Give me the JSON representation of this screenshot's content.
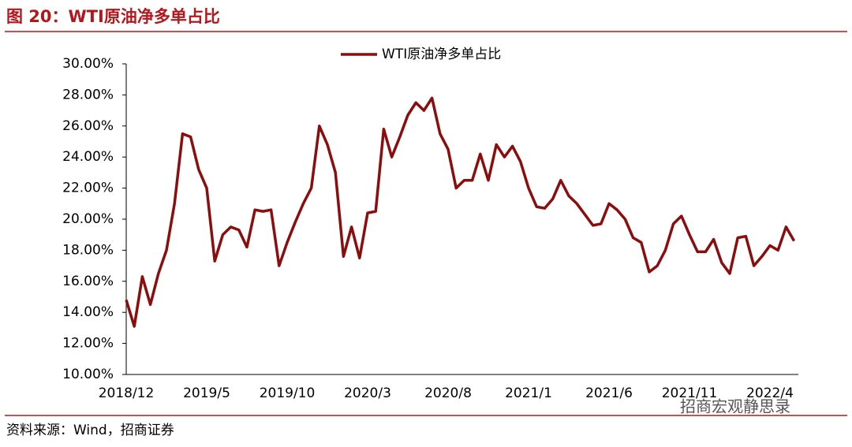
{
  "chart_data": {
    "type": "line",
    "title": "图 20：WTI原油净多单占比",
    "source": "资料来源：Wind，招商证券",
    "watermark": "招商宏观静思录",
    "legend_position": "top",
    "categories": [
      "2018/12",
      null,
      null,
      null,
      null,
      null,
      null,
      null,
      null,
      null,
      "2019/5",
      null,
      null,
      null,
      null,
      null,
      null,
      null,
      null,
      null,
      "2019/10",
      null,
      null,
      null,
      null,
      null,
      null,
      null,
      null,
      null,
      "2020/3",
      null,
      null,
      null,
      null,
      null,
      null,
      null,
      null,
      null,
      "2020/8",
      null,
      null,
      null,
      null,
      null,
      null,
      null,
      null,
      null,
      "2021/1",
      null,
      null,
      null,
      null,
      null,
      null,
      null,
      null,
      null,
      "2021/6",
      null,
      null,
      null,
      null,
      null,
      null,
      null,
      null,
      null,
      "2021/11",
      null,
      null,
      null,
      null,
      null,
      null,
      null,
      null,
      null,
      "2022/4",
      null,
      null,
      null
    ],
    "series": [
      {
        "name": "WTI原油净多单占比",
        "color": "#8b0d0d",
        "values": [
          14.8,
          13.1,
          16.3,
          14.5,
          16.5,
          18.0,
          21.0,
          25.5,
          25.3,
          23.2,
          22.0,
          17.3,
          19.0,
          19.5,
          19.3,
          18.2,
          20.6,
          20.5,
          20.6,
          17.0,
          18.5,
          19.8,
          21.0,
          22.0,
          26.0,
          24.8,
          23.0,
          17.6,
          19.5,
          17.5,
          20.4,
          20.5,
          25.8,
          24.0,
          25.3,
          26.7,
          27.5,
          27.0,
          27.8,
          25.5,
          24.5,
          22.0,
          22.5,
          22.5,
          24.2,
          22.5,
          24.8,
          24.0,
          24.7,
          23.7,
          22.0,
          20.8,
          20.7,
          21.3,
          22.5,
          21.5,
          21.0,
          20.3,
          19.6,
          19.7,
          21.0,
          20.6,
          20.0,
          18.8,
          18.5,
          16.6,
          17.0,
          18.0,
          19.7,
          20.2,
          19.0,
          17.9,
          17.9,
          18.7,
          17.2,
          16.5,
          18.8,
          18.9,
          17.0,
          17.6,
          18.3,
          18.0,
          19.5,
          18.6
        ]
      }
    ],
    "ylim": [
      10,
      30
    ],
    "yticks": [
      {
        "value": 10,
        "label": "10.00%"
      },
      {
        "value": 12,
        "label": "12.00%"
      },
      {
        "value": 14,
        "label": "14.00%"
      },
      {
        "value": 16,
        "label": "16.00%"
      },
      {
        "value": 18,
        "label": "18.00%"
      },
      {
        "value": 20,
        "label": "20.00%"
      },
      {
        "value": 22,
        "label": "22.00%"
      },
      {
        "value": 24,
        "label": "24.00%"
      },
      {
        "value": 26,
        "label": "26.00%"
      },
      {
        "value": 28,
        "label": "28.00%"
      },
      {
        "value": 30,
        "label": "30.00%"
      }
    ],
    "grid": false
  }
}
